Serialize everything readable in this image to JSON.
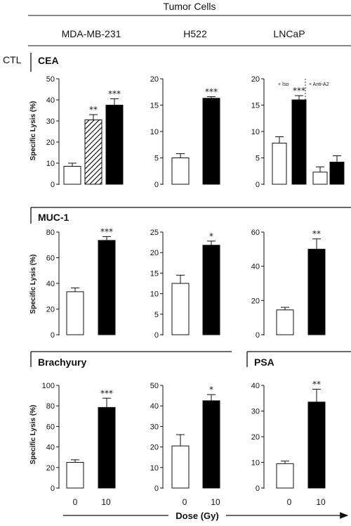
{
  "header": {
    "title": "Tumor Cells",
    "columns": [
      "MDA-MB-231",
      "H522",
      "LNCaP"
    ],
    "ctl_label": "CTL"
  },
  "rows": [
    {
      "label": "CEA"
    },
    {
      "label": "MUC-1"
    },
    {
      "label": "Brachyury"
    },
    {
      "label": "PSA"
    }
  ],
  "ylabel": "Specific Lysis (%)",
  "xlabel": "Dose (Gy)",
  "x_ticks": [
    "0",
    "10"
  ],
  "colors": {
    "open": "#ffffff",
    "filled": "#000000",
    "hatched": "#000000"
  },
  "chart_data": [
    {
      "type": "bar",
      "name": "CEA MDA-MB-231",
      "ylim": [
        0,
        50
      ],
      "yticks": [
        "0",
        "10",
        "20",
        "30",
        "40",
        "50"
      ],
      "bars": [
        {
          "fill": "open",
          "value": 8.5,
          "err": 1.5,
          "sig": ""
        },
        {
          "fill": "hatched",
          "value": 30.5,
          "err": 2.5,
          "sig": "**"
        },
        {
          "fill": "filled",
          "value": 37.5,
          "err": 3.0,
          "sig": "***"
        }
      ]
    },
    {
      "type": "bar",
      "name": "CEA H522",
      "ylim": [
        0,
        20
      ],
      "yticks": [
        "0",
        "5",
        "10",
        "15",
        "20"
      ],
      "bars": [
        {
          "fill": "open",
          "value": 5.0,
          "err": 0.8,
          "sig": ""
        },
        {
          "fill": "filled",
          "value": 16.3,
          "err": 0.3,
          "sig": "***"
        }
      ]
    },
    {
      "type": "bar",
      "name": "CEA LNCaP",
      "ylim": [
        0,
        20
      ],
      "yticks": [
        "0",
        "5",
        "10",
        "15",
        "20"
      ],
      "annotations": [
        "+ Iso",
        "+ Anti-A2"
      ],
      "bars": [
        {
          "fill": "open",
          "value": 7.8,
          "err": 1.2,
          "sig": ""
        },
        {
          "fill": "filled",
          "value": 16.0,
          "err": 0.8,
          "sig": "***"
        },
        {
          "fill": "open",
          "value": 2.3,
          "err": 1.0,
          "sig": ""
        },
        {
          "fill": "filled",
          "value": 4.2,
          "err": 1.2,
          "sig": ""
        }
      ]
    },
    {
      "type": "bar",
      "name": "MUC-1 MDA-MB-231",
      "ylim": [
        0,
        80
      ],
      "yticks": [
        "0",
        "20",
        "40",
        "60",
        "80"
      ],
      "bars": [
        {
          "fill": "open",
          "value": 33.5,
          "err": 3.0,
          "sig": ""
        },
        {
          "fill": "filled",
          "value": 73.5,
          "err": 3.0,
          "sig": "***"
        }
      ]
    },
    {
      "type": "bar",
      "name": "MUC-1 H522",
      "ylim": [
        0,
        25
      ],
      "yticks": [
        "0",
        "5",
        "10",
        "15",
        "20",
        "25"
      ],
      "bars": [
        {
          "fill": "open",
          "value": 12.5,
          "err": 2.0,
          "sig": ""
        },
        {
          "fill": "filled",
          "value": 21.8,
          "err": 1.0,
          "sig": "*"
        }
      ]
    },
    {
      "type": "bar",
      "name": "MUC-1 LNCaP",
      "ylim": [
        0,
        60
      ],
      "yticks": [
        "0",
        "20",
        "40",
        "60"
      ],
      "bars": [
        {
          "fill": "open",
          "value": 14.5,
          "err": 1.5,
          "sig": ""
        },
        {
          "fill": "filled",
          "value": 50.0,
          "err": 6.0,
          "sig": "**"
        }
      ]
    },
    {
      "type": "bar",
      "name": "Brachyury MDA-MB-231",
      "ylim": [
        0,
        100
      ],
      "yticks": [
        "0",
        "20",
        "40",
        "60",
        "80",
        "100"
      ],
      "bars": [
        {
          "fill": "open",
          "value": 25.0,
          "err": 2.5,
          "sig": ""
        },
        {
          "fill": "filled",
          "value": 78.5,
          "err": 9.0,
          "sig": "***"
        }
      ]
    },
    {
      "type": "bar",
      "name": "Brachyury H522",
      "ylim": [
        0,
        50
      ],
      "yticks": [
        "0",
        "10",
        "20",
        "30",
        "40",
        "50"
      ],
      "bars": [
        {
          "fill": "open",
          "value": 20.5,
          "err": 5.5,
          "sig": ""
        },
        {
          "fill": "filled",
          "value": 42.5,
          "err": 3.0,
          "sig": "*"
        }
      ]
    },
    {
      "type": "bar",
      "name": "PSA LNCaP",
      "ylim": [
        0,
        40
      ],
      "yticks": [
        "0",
        "10",
        "20",
        "30",
        "40"
      ],
      "bars": [
        {
          "fill": "open",
          "value": 9.5,
          "err": 1.0,
          "sig": ""
        },
        {
          "fill": "filled",
          "value": 33.5,
          "err": 5.0,
          "sig": "**"
        }
      ]
    }
  ]
}
